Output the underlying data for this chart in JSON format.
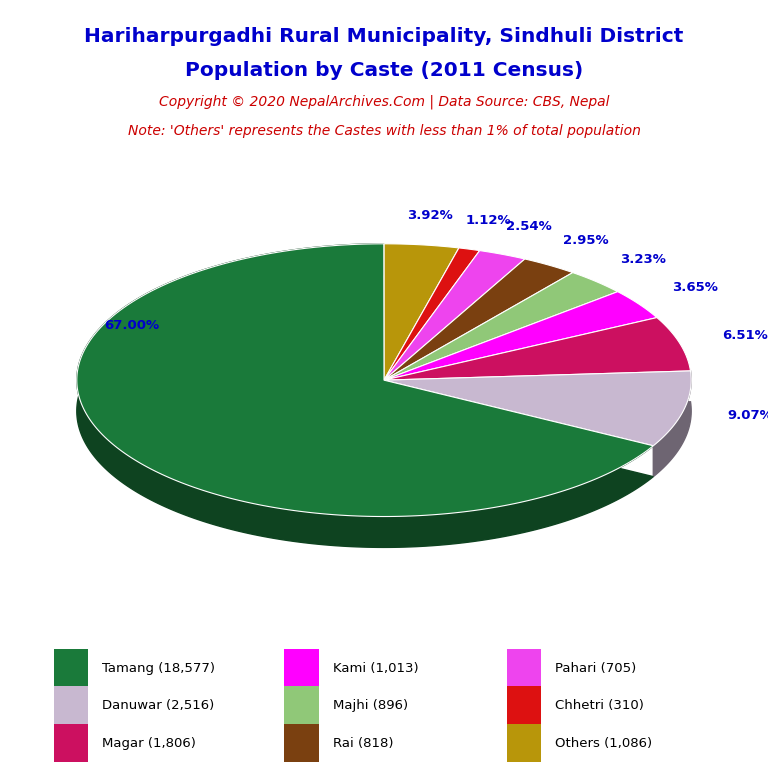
{
  "title_line1": "Hariharpurgadhi Rural Municipality, Sindhuli District",
  "title_line2": "Population by Caste (2011 Census)",
  "copyright_text": "Copyright © 2020 NepalArchives.Com | Data Source: CBS, Nepal",
  "note_text": "Note: 'Others' represents the Castes with less than 1% of total population",
  "title_color": "#0000cc",
  "copyright_color": "#cc0000",
  "note_color": "#cc0000",
  "pct_color": "#0000cc",
  "background_color": "#ffffff",
  "slices": [
    {
      "name": "Others",
      "pct": 3.92,
      "color": "#b8960a"
    },
    {
      "name": "Chhetri",
      "pct": 1.12,
      "color": "#dd1111"
    },
    {
      "name": "Pahari",
      "pct": 2.54,
      "color": "#ee44ee"
    },
    {
      "name": "Rai",
      "pct": 2.95,
      "color": "#7a4010"
    },
    {
      "name": "Majhi",
      "pct": 3.23,
      "color": "#90c878"
    },
    {
      "name": "Kami",
      "pct": 3.65,
      "color": "#ff00ff"
    },
    {
      "name": "Magar",
      "pct": 6.51,
      "color": "#cc1060"
    },
    {
      "name": "Danuwar",
      "pct": 9.07,
      "color": "#c8b8d0"
    },
    {
      "name": "Tamang",
      "pct": 67.0,
      "color": "#1a7a3a"
    }
  ],
  "pct_labels": [
    "3.92%",
    "1.12%",
    "2.54%",
    "2.95%",
    "3.23%",
    "3.65%",
    "6.51%",
    "9.07%",
    "67.00%"
  ],
  "legend_order": [
    {
      "label": "Tamang (18,577)",
      "color": "#1a7a3a"
    },
    {
      "label": "Kami (1,013)",
      "color": "#ff00ff"
    },
    {
      "label": "Pahari (705)",
      "color": "#ee44ee"
    },
    {
      "label": "Danuwar (2,516)",
      "color": "#c8b8d0"
    },
    {
      "label": "Majhi (896)",
      "color": "#90c878"
    },
    {
      "label": "Chhetri (310)",
      "color": "#dd1111"
    },
    {
      "label": "Magar (1,806)",
      "color": "#cc1060"
    },
    {
      "label": "Rai (818)",
      "color": "#7a4010"
    },
    {
      "label": "Others (1,086)",
      "color": "#b8960a"
    }
  ]
}
